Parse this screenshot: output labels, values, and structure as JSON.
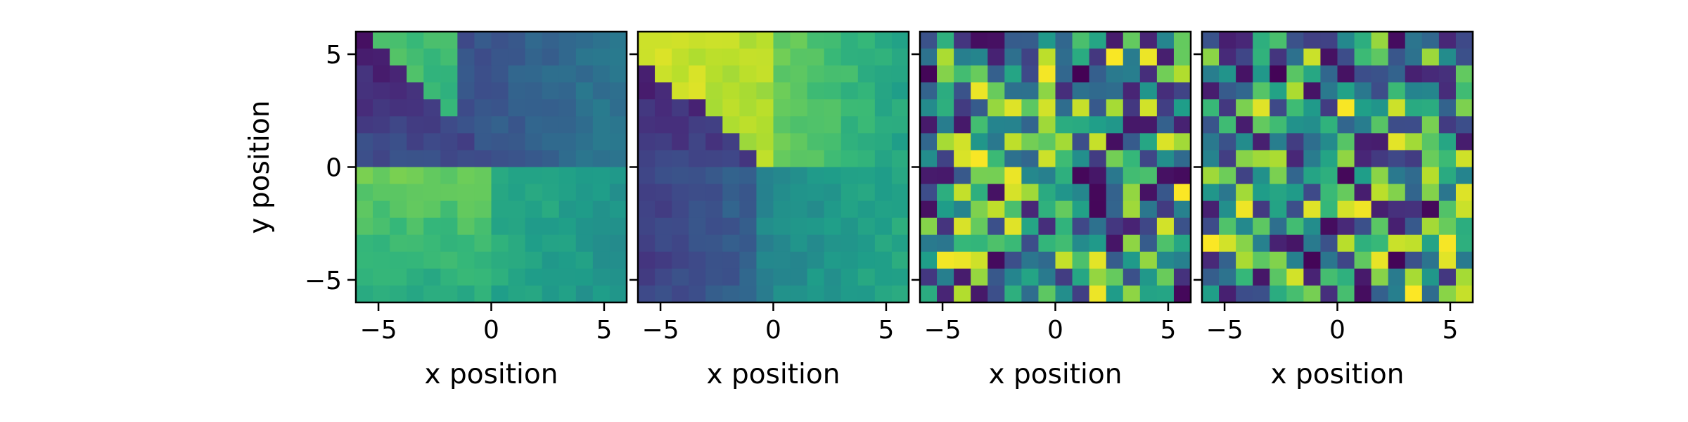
{
  "chart_data": [
    {
      "type": "heatmap",
      "xlabel": "x position",
      "ylabel": "y position",
      "xlim": [
        -6,
        6
      ],
      "ylim": [
        -6,
        6
      ],
      "x_ticks": [
        -5,
        0,
        5
      ],
      "x_tick_labels": [
        "−5",
        "0",
        "5"
      ],
      "y_ticks": [
        5,
        0,
        -5
      ],
      "y_tick_labels": [
        "5",
        "0",
        "−5"
      ],
      "grid": false,
      "colormap": "viridis",
      "value_range": [
        0,
        1
      ],
      "rows": 16,
      "cols": 16,
      "pattern": "corner-wedge",
      "seed": 11
    },
    {
      "type": "heatmap",
      "xlabel": "x position",
      "ylabel": "",
      "xlim": [
        -6,
        6
      ],
      "ylim": [
        -6,
        6
      ],
      "x_ticks": [
        -5,
        0,
        5
      ],
      "x_tick_labels": [
        "−5",
        "0",
        "5"
      ],
      "y_ticks": [
        5,
        0,
        -5
      ],
      "y_tick_labels": [],
      "grid": false,
      "colormap": "viridis",
      "value_range": [
        0,
        1
      ],
      "rows": 16,
      "cols": 16,
      "pattern": "corner-wedge-inverted",
      "seed": 23
    },
    {
      "type": "heatmap",
      "xlabel": "x position",
      "ylabel": "",
      "xlim": [
        -6,
        6
      ],
      "ylim": [
        -6,
        6
      ],
      "x_ticks": [
        -5,
        0,
        5
      ],
      "x_tick_labels": [
        "−5",
        "0",
        "5"
      ],
      "y_ticks": [
        5,
        0,
        -5
      ],
      "y_tick_labels": [],
      "grid": false,
      "colormap": "viridis",
      "value_range": [
        0,
        1
      ],
      "rows": 16,
      "cols": 16,
      "pattern": "random",
      "seed": 37
    },
    {
      "type": "heatmap",
      "xlabel": "x position",
      "ylabel": "",
      "xlim": [
        -6,
        6
      ],
      "ylim": [
        -6,
        6
      ],
      "x_ticks": [
        -5,
        0,
        5
      ],
      "x_tick_labels": [
        "−5",
        "0",
        "5"
      ],
      "y_ticks": [
        5,
        0,
        -5
      ],
      "y_tick_labels": [],
      "grid": false,
      "colormap": "viridis",
      "value_range": [
        0,
        1
      ],
      "rows": 16,
      "cols": 16,
      "pattern": "random",
      "seed": 53
    }
  ]
}
